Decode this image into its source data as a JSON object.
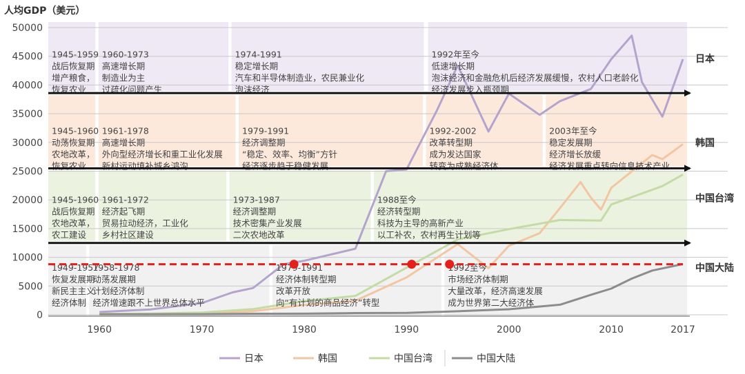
{
  "chart_data": {
    "type": "line",
    "ylabel": "人均GDP（美元）",
    "xlim": [
      1955,
      2017
    ],
    "ylim": [
      0,
      50000
    ],
    "y_ticks": [
      0,
      5000,
      10000,
      15000,
      20000,
      25000,
      30000,
      35000,
      40000,
      45000,
      50000
    ],
    "x_ticks": [
      {
        "value": 1960,
        "label": "1960"
      },
      {
        "value": 1970,
        "label": "1970"
      },
      {
        "value": 1980,
        "label": "1980"
      },
      {
        "value": 1990,
        "label": "1990"
      },
      {
        "value": 2000,
        "label": "2000"
      },
      {
        "value": 2010,
        "label": "2010"
      },
      {
        "value": 2017,
        "label": "2017"
      }
    ],
    "grid": true,
    "legend_position": "bottom",
    "series": [
      {
        "name": "日本",
        "color": "#b3a4cc",
        "points": [
          [
            1960,
            480
          ],
          [
            1965,
            920
          ],
          [
            1970,
            2040
          ],
          [
            1973,
            3900
          ],
          [
            1975,
            4650
          ],
          [
            1978,
            8800
          ],
          [
            1980,
            9400
          ],
          [
            1985,
            11500
          ],
          [
            1988,
            25000
          ],
          [
            1990,
            25300
          ],
          [
            1993,
            35700
          ],
          [
            1995,
            43400
          ],
          [
            1998,
            31900
          ],
          [
            2000,
            38500
          ],
          [
            2003,
            34800
          ],
          [
            2005,
            37200
          ],
          [
            2008,
            39300
          ],
          [
            2010,
            44500
          ],
          [
            2012,
            48600
          ],
          [
            2013,
            40500
          ],
          [
            2015,
            34500
          ],
          [
            2017,
            44500
          ]
        ]
      },
      {
        "name": "韩国",
        "color": "#f2c6a2",
        "points": [
          [
            1960,
            160
          ],
          [
            1965,
            110
          ],
          [
            1970,
            280
          ],
          [
            1975,
            620
          ],
          [
            1980,
            1700
          ],
          [
            1985,
            2450
          ],
          [
            1990,
            6500
          ],
          [
            1995,
            12300
          ],
          [
            1998,
            8100
          ],
          [
            2000,
            12000
          ],
          [
            2003,
            14200
          ],
          [
            2005,
            18600
          ],
          [
            2007,
            23100
          ],
          [
            2008,
            20400
          ],
          [
            2009,
            18300
          ],
          [
            2010,
            22100
          ],
          [
            2014,
            27800
          ],
          [
            2015,
            27100
          ],
          [
            2017,
            29700
          ]
        ]
      },
      {
        "name": "中国台湾",
        "color": "#c5dba5",
        "points": [
          [
            1960,
            150
          ],
          [
            1965,
            220
          ],
          [
            1970,
            390
          ],
          [
            1975,
            980
          ],
          [
            1980,
            2390
          ],
          [
            1985,
            3290
          ],
          [
            1990,
            8200
          ],
          [
            1995,
            13100
          ],
          [
            2000,
            14900
          ],
          [
            2005,
            16500
          ],
          [
            2009,
            16400
          ],
          [
            2010,
            19200
          ],
          [
            2015,
            22400
          ],
          [
            2017,
            24400
          ]
        ]
      },
      {
        "name": "中国大陆",
        "color": "#8c8c8c",
        "points": [
          [
            1960,
            90
          ],
          [
            1965,
            100
          ],
          [
            1970,
            110
          ],
          [
            1975,
            180
          ],
          [
            1980,
            195
          ],
          [
            1985,
            295
          ],
          [
            1990,
            320
          ],
          [
            1995,
            610
          ],
          [
            2000,
            960
          ],
          [
            2005,
            1750
          ],
          [
            2008,
            3470
          ],
          [
            2010,
            4560
          ],
          [
            2012,
            6300
          ],
          [
            2014,
            7700
          ],
          [
            2015,
            8070
          ],
          [
            2017,
            8830
          ]
        ]
      }
    ],
    "reference_line": {
      "value": 8800,
      "color": "#e3201b",
      "points_x": [
        1979,
        1990.5,
        1994.2
      ]
    },
    "bands": [
      {
        "country": "日本",
        "fill": "#e8e2f0",
        "arrow_y": 38600,
        "label_y": 44800,
        "periods": [
          {
            "x0": 1955,
            "x1": 1959.6,
            "lines": [
              "1945-1959",
              "战后恢复期",
              "增产粮食，",
              "恢复农业"
            ]
          },
          {
            "x0": 1959.9,
            "x1": 1972.6,
            "lines": [
              "1960-1973",
              "高速增长期",
              "制造业为主",
              "过疏化问题产生"
            ]
          },
          {
            "x0": 1972.9,
            "x1": 1991.7,
            "lines": [
              "1974-1991",
              "稳定增长期",
              "汽车和半导体制造业，农民兼业化",
              "泡沫经济"
            ]
          },
          {
            "x0": 1992.1,
            "x1": 2017.4,
            "lines": [
              "1992年至今",
              "低速增长期",
              "泡沫经济和金融危机后经济发展缓慢，农村人口老龄化",
              "经济发展步入瓶颈期"
            ]
          }
        ]
      },
      {
        "country": "韩国",
        "fill": "#fbe1d0",
        "arrow_y": 25500,
        "label_y": 31500,
        "periods": [
          {
            "x0": 1955,
            "x1": 1959.6,
            "lines": [
              "1945-1960",
              "动荡恢复期",
              "农地改革，",
              "恢复农业"
            ]
          },
          {
            "x0": 1959.9,
            "x1": 1973.3,
            "lines": [
              "1961-1978",
              "高速增长期",
              "外向型经济增长和重工业化发展",
              "新村运动填补城乡鸿沟"
            ]
          },
          {
            "x0": 1973.6,
            "x1": 1991.6,
            "lines": [
              "1979-1991",
              "经济调整期",
              "“稳定、效率、均衡”方针",
              "经济逐步趋于稳健发展"
            ]
          },
          {
            "x0": 1991.9,
            "x1": 2003.3,
            "lines": [
              "1992-2002",
              "改革转型期",
              "成为发达国家",
              "转变为成熟经济体"
            ]
          },
          {
            "x0": 2003.6,
            "x1": 2017.4,
            "lines": [
              "2003年至今",
              "稳定发展期",
              "经济增长放缓",
              "经济发展重点转向信息技术产业"
            ]
          }
        ]
      },
      {
        "country": "中国台湾",
        "fill": "#e4eed5",
        "arrow_y": 12500,
        "label_y": 19500,
        "periods": [
          {
            "x0": 1955,
            "x1": 1959.6,
            "lines": [
              "1945-1960",
              "战后恢复期",
              "农地改革，",
              "农工建设"
            ]
          },
          {
            "x0": 1959.9,
            "x1": 1972.4,
            "lines": [
              "1961-1972",
              "经济起飞期",
              "贸易拉动经济，工业化",
              "乡村社区建设"
            ]
          },
          {
            "x0": 1972.7,
            "x1": 1986.5,
            "lines": [
              "1973-1987",
              "经济调整期",
              "技术密集产业发展",
              "二次农地改革"
            ]
          },
          {
            "x0": 1986.8,
            "x1": 2017.4,
            "lines": [
              "1988至今",
              "经济转型期",
              "科技为主导的高新产业",
              "以工补农，农村再生计划等"
            ]
          }
        ]
      },
      {
        "country": "中国大陆",
        "fill": "#ececec",
        "arrow_y": null,
        "label_y": 7700,
        "periods": [
          {
            "x0": 1955,
            "x1": 1958.7,
            "lines": [
              "1949-1957",
              "恢复发展期",
              "新民主主义",
              "经济体制"
            ]
          },
          {
            "x0": 1959.0,
            "x1": 1976.6,
            "lines": [
              "1958-1978",
              "动荡发展期",
              "计划经济体制",
              "经济增速跟不上世界总体水平"
            ]
          },
          {
            "x0": 1976.9,
            "x1": 1993.4,
            "lines": [
              "1979-1991",
              "经济体制转型期",
              "改革开放",
              "向“有计划的商品经济”转型"
            ]
          },
          {
            "x0": 1993.7,
            "x1": 2017.4,
            "lines": [
              "1992至今",
              "市场经济体制期",
              "大量改革，经济高速发展",
              "成为世界第二大经济体"
            ]
          }
        ]
      }
    ]
  }
}
